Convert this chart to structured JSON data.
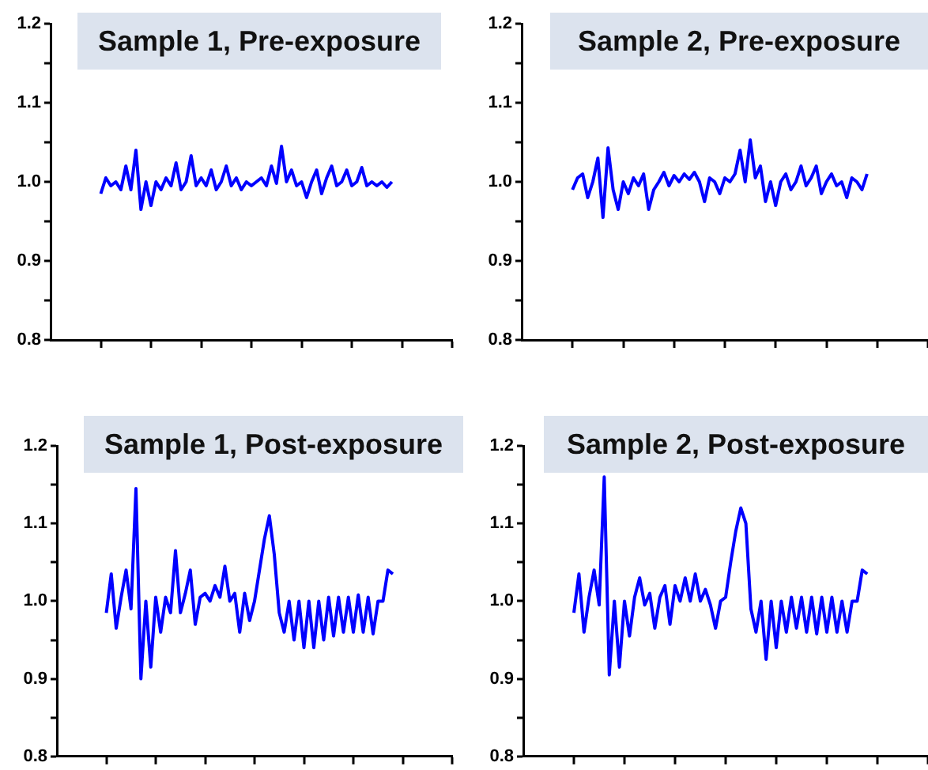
{
  "chart_data": [
    {
      "type": "line",
      "title": "Sample 1, Pre-exposure",
      "categories": [
        null,
        null,
        null,
        null,
        null,
        null,
        null,
        null,
        null,
        null,
        null,
        null,
        null,
        null,
        null,
        null,
        null,
        null,
        null,
        null,
        null,
        null,
        null,
        null,
        null,
        null,
        null,
        null,
        null,
        null,
        null,
        null,
        null,
        null,
        null,
        null,
        null,
        null,
        null,
        null,
        null,
        null,
        null,
        null,
        null,
        null,
        null,
        null,
        null,
        null,
        null,
        null,
        null,
        null,
        null,
        null,
        null,
        null,
        null,
        null,
        null,
        null,
        null,
        null,
        null,
        null,
        null,
        null,
        null,
        null,
        null,
        null,
        null,
        null,
        null,
        null,
        null,
        null,
        null,
        null,
        null
      ],
      "series": [
        {
          "color": "#0000ff",
          "values": [
            null,
            null,
            null,
            null,
            null,
            null,
            null,
            null,
            null,
            null,
            0.985,
            1.005,
            0.995,
            1.0,
            0.99,
            1.02,
            0.99,
            1.04,
            0.965,
            1.0,
            0.97,
            1.0,
            0.99,
            1.005,
            0.995,
            1.024,
            0.99,
            1.0,
            1.033,
            0.995,
            1.005,
            0.995,
            1.015,
            0.99,
            1.0,
            1.02,
            0.995,
            1.005,
            0.99,
            1.0,
            0.995,
            1.0,
            1.005,
            0.995,
            1.02,
            0.998,
            1.045,
            1.0,
            1.015,
            0.995,
            1.0,
            0.98,
            1.0,
            1.015,
            0.985,
            1.005,
            1.02,
            0.995,
            1.0,
            1.015,
            0.995,
            1.0,
            1.018,
            0.995,
            1.0,
            0.995,
            1.0,
            0.993,
            1.0,
            null,
            null,
            null,
            null,
            null,
            null,
            null,
            null,
            null,
            null,
            null,
            null
          ]
        }
      ],
      "ylim": [
        0.8,
        1.2
      ],
      "yticks": [
        {
          "value": 0.8,
          "label": "0.8"
        },
        {
          "value": 0.85,
          "label": null
        },
        {
          "value": 0.9,
          "label": "0.9"
        },
        {
          "value": 0.95,
          "label": null
        },
        {
          "value": 1.0,
          "label": "1.0"
        },
        {
          "value": 1.05,
          "label": null
        },
        {
          "value": 1.1,
          "label": "1.1"
        },
        {
          "value": 1.15,
          "label": null
        },
        {
          "value": 1.2,
          "label": "1.2"
        }
      ],
      "tick_labels": "y",
      "grid": false,
      "marker": "none"
    },
    {
      "type": "line",
      "title": "Sample 2, Pre-exposure",
      "categories": [
        null,
        null,
        null,
        null,
        null,
        null,
        null,
        null,
        null,
        null,
        null,
        null,
        null,
        null,
        null,
        null,
        null,
        null,
        null,
        null,
        null,
        null,
        null,
        null,
        null,
        null,
        null,
        null,
        null,
        null,
        null,
        null,
        null,
        null,
        null,
        null,
        null,
        null,
        null,
        null,
        null,
        null,
        null,
        null,
        null,
        null,
        null,
        null,
        null,
        null,
        null,
        null,
        null,
        null,
        null,
        null,
        null,
        null,
        null,
        null,
        null,
        null,
        null,
        null,
        null,
        null,
        null,
        null,
        null,
        null,
        null,
        null,
        null,
        null,
        null,
        null,
        null,
        null,
        null,
        null,
        null
      ],
      "series": [
        {
          "color": "#0000ff",
          "values": [
            null,
            null,
            null,
            null,
            null,
            null,
            null,
            null,
            null,
            null,
            0.99,
            1.005,
            1.01,
            0.98,
            1.0,
            1.03,
            0.955,
            1.043,
            0.99,
            0.965,
            1.0,
            0.985,
            1.005,
            0.995,
            1.01,
            0.965,
            0.99,
            1.0,
            1.012,
            0.995,
            1.008,
            1.0,
            1.01,
            1.003,
            1.012,
            1.0,
            0.975,
            1.005,
            1.0,
            0.985,
            1.005,
            1.0,
            1.01,
            1.04,
            1.0,
            1.053,
            1.005,
            1.02,
            0.975,
            1.0,
            0.97,
            1.0,
            1.01,
            0.99,
            1.0,
            1.02,
            0.995,
            1.005,
            1.02,
            0.985,
            1.0,
            1.01,
            0.995,
            1.0,
            0.98,
            1.005,
            1.0,
            0.99,
            1.01,
            null,
            null,
            null,
            null,
            null,
            null,
            null,
            null,
            null,
            null,
            null,
            null
          ]
        }
      ],
      "ylim": [
        0.8,
        1.2
      ],
      "yticks": [
        {
          "value": 0.8,
          "label": "0.8"
        },
        {
          "value": 0.85,
          "label": null
        },
        {
          "value": 0.9,
          "label": "0.9"
        },
        {
          "value": 0.95,
          "label": null
        },
        {
          "value": 1.0,
          "label": "1.0"
        },
        {
          "value": 1.05,
          "label": null
        },
        {
          "value": 1.1,
          "label": "1.1"
        },
        {
          "value": 1.15,
          "label": null
        },
        {
          "value": 1.2,
          "label": "1.2"
        }
      ],
      "tick_labels": "y",
      "grid": false,
      "marker": "none"
    },
    {
      "type": "line",
      "title": "Sample 1, Post-exposure",
      "categories": [
        null,
        null,
        null,
        null,
        null,
        null,
        null,
        null,
        null,
        null,
        null,
        null,
        null,
        null,
        null,
        null,
        null,
        null,
        null,
        null,
        null,
        null,
        null,
        null,
        null,
        null,
        null,
        null,
        null,
        null,
        null,
        null,
        null,
        null,
        null,
        null,
        null,
        null,
        null,
        null,
        null,
        null,
        null,
        null,
        null,
        null,
        null,
        null,
        null,
        null,
        null,
        null,
        null,
        null,
        null,
        null,
        null,
        null,
        null,
        null,
        null,
        null,
        null,
        null,
        null,
        null,
        null,
        null,
        null,
        null,
        null,
        null,
        null,
        null,
        null,
        null,
        null,
        null,
        null,
        null,
        null
      ],
      "series": [
        {
          "color": "#0000ff",
          "values": [
            null,
            null,
            null,
            null,
            null,
            null,
            null,
            null,
            null,
            null,
            0.985,
            1.035,
            0.965,
            1.005,
            1.04,
            0.99,
            1.145,
            0.9,
            1.0,
            0.915,
            1.005,
            0.96,
            1.005,
            0.985,
            1.065,
            0.985,
            1.01,
            1.04,
            0.97,
            1.005,
            1.01,
            1.0,
            1.02,
            1.005,
            1.045,
            1.0,
            1.01,
            0.96,
            1.01,
            0.975,
            1.0,
            1.04,
            1.08,
            1.11,
            1.06,
            0.985,
            0.96,
            1.0,
            0.95,
            1.0,
            0.94,
            1.0,
            0.94,
            1.0,
            0.95,
            1.005,
            0.955,
            1.005,
            0.96,
            1.005,
            0.96,
            1.008,
            0.96,
            1.005,
            0.958,
            1.0,
            1.0,
            1.04,
            1.035,
            null,
            null,
            null,
            null,
            null,
            null,
            null,
            null,
            null,
            null,
            null,
            null
          ]
        }
      ],
      "ylim": [
        0.8,
        1.2
      ],
      "yticks": [
        {
          "value": 0.8,
          "label": "0.8"
        },
        {
          "value": 0.85,
          "label": null
        },
        {
          "value": 0.9,
          "label": "0.9"
        },
        {
          "value": 0.95,
          "label": null
        },
        {
          "value": 1.0,
          "label": "1.0"
        },
        {
          "value": 1.05,
          "label": null
        },
        {
          "value": 1.1,
          "label": "1.1"
        },
        {
          "value": 1.15,
          "label": null
        },
        {
          "value": 1.2,
          "label": "1.2"
        }
      ],
      "tick_labels": "y",
      "grid": false,
      "marker": "none"
    },
    {
      "type": "line",
      "title": "Sample 2, Post-exposure",
      "categories": [
        null,
        null,
        null,
        null,
        null,
        null,
        null,
        null,
        null,
        null,
        null,
        null,
        null,
        null,
        null,
        null,
        null,
        null,
        null,
        null,
        null,
        null,
        null,
        null,
        null,
        null,
        null,
        null,
        null,
        null,
        null,
        null,
        null,
        null,
        null,
        null,
        null,
        null,
        null,
        null,
        null,
        null,
        null,
        null,
        null,
        null,
        null,
        null,
        null,
        null,
        null,
        null,
        null,
        null,
        null,
        null,
        null,
        null,
        null,
        null,
        null,
        null,
        null,
        null,
        null,
        null,
        null,
        null,
        null,
        null,
        null,
        null,
        null,
        null,
        null,
        null,
        null,
        null,
        null,
        null,
        null
      ],
      "series": [
        {
          "color": "#0000ff",
          "values": [
            null,
            null,
            null,
            null,
            null,
            null,
            null,
            null,
            null,
            null,
            0.985,
            1.035,
            0.96,
            1.005,
            1.04,
            0.995,
            1.16,
            0.905,
            1.0,
            0.915,
            1.0,
            0.955,
            1.005,
            1.03,
            0.995,
            1.01,
            0.965,
            1.005,
            1.02,
            0.97,
            1.02,
            1.0,
            1.03,
            1.0,
            1.035,
            1.0,
            1.015,
            0.995,
            0.965,
            1.0,
            1.005,
            1.05,
            1.09,
            1.12,
            1.1,
            0.99,
            0.96,
            1.0,
            0.925,
            1.0,
            0.94,
            1.0,
            0.96,
            1.005,
            0.965,
            1.005,
            0.96,
            1.005,
            0.958,
            1.005,
            0.96,
            1.005,
            0.96,
            1.0,
            0.96,
            1.0,
            1.0,
            1.04,
            1.035,
            null,
            null,
            null,
            null,
            null,
            null,
            null,
            null,
            null,
            null,
            null,
            null
          ]
        }
      ],
      "ylim": [
        0.8,
        1.2
      ],
      "yticks": [
        {
          "value": 0.8,
          "label": "0.8"
        },
        {
          "value": 0.85,
          "label": null
        },
        {
          "value": 0.9,
          "label": "0.9"
        },
        {
          "value": 0.95,
          "label": null
        },
        {
          "value": 1.0,
          "label": "1.0"
        },
        {
          "value": 1.05,
          "label": null
        },
        {
          "value": 1.1,
          "label": "1.1"
        },
        {
          "value": 1.15,
          "label": null
        },
        {
          "value": 1.2,
          "label": "1.2"
        }
      ],
      "tick_labels": "y",
      "grid": false,
      "marker": "none"
    }
  ]
}
